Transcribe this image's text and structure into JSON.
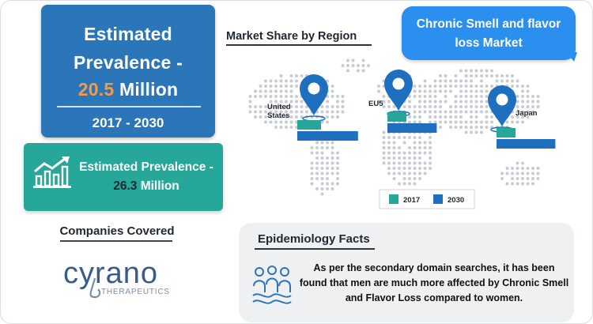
{
  "banner": {
    "line1": "Estimated",
    "line2": "Prevalence -",
    "value": "20.5",
    "unit": "Million",
    "years": "2017 - 2030"
  },
  "teal_card": {
    "line1": "Estimated Prevalence -",
    "value": "26.3",
    "unit": "Million"
  },
  "companies": {
    "title": "Companies Covered",
    "logo_name": "cyrano",
    "logo_sub": "THERAPEUTICS"
  },
  "market_share_title": "Market Share by Region",
  "bubble": {
    "line1": "Chronic Smell and flavor",
    "line2": "loss Market"
  },
  "epidemiology": {
    "title": "Epidemiology Facts",
    "text": "As per the secondary domain searches, it has been found that men are much more affected by Chronic Smell and Flavor Loss compared to women."
  },
  "colors": {
    "blue_card": "#2a76b8",
    "teal": "#26a79a",
    "accent_orange": "#f59a4a",
    "bubble": "#2b8ff0",
    "bar_2017": "#26a79a",
    "bar_2030": "#1f6fbf",
    "pin": "#1f6fbf"
  },
  "chart_data": {
    "type": "bar",
    "title": "Market Share by Region",
    "categories": [
      "United States",
      "EU5",
      "Japan"
    ],
    "region_labels": [
      "United\nStates",
      "EU5",
      "Japan"
    ],
    "series": [
      {
        "name": "2017",
        "values": [
          25,
          20,
          20
        ]
      },
      {
        "name": "2030",
        "values": [
          64,
          52,
          62
        ]
      }
    ],
    "legend": [
      "2017",
      "2030"
    ],
    "legend_position": "bottom",
    "grid": false
  }
}
